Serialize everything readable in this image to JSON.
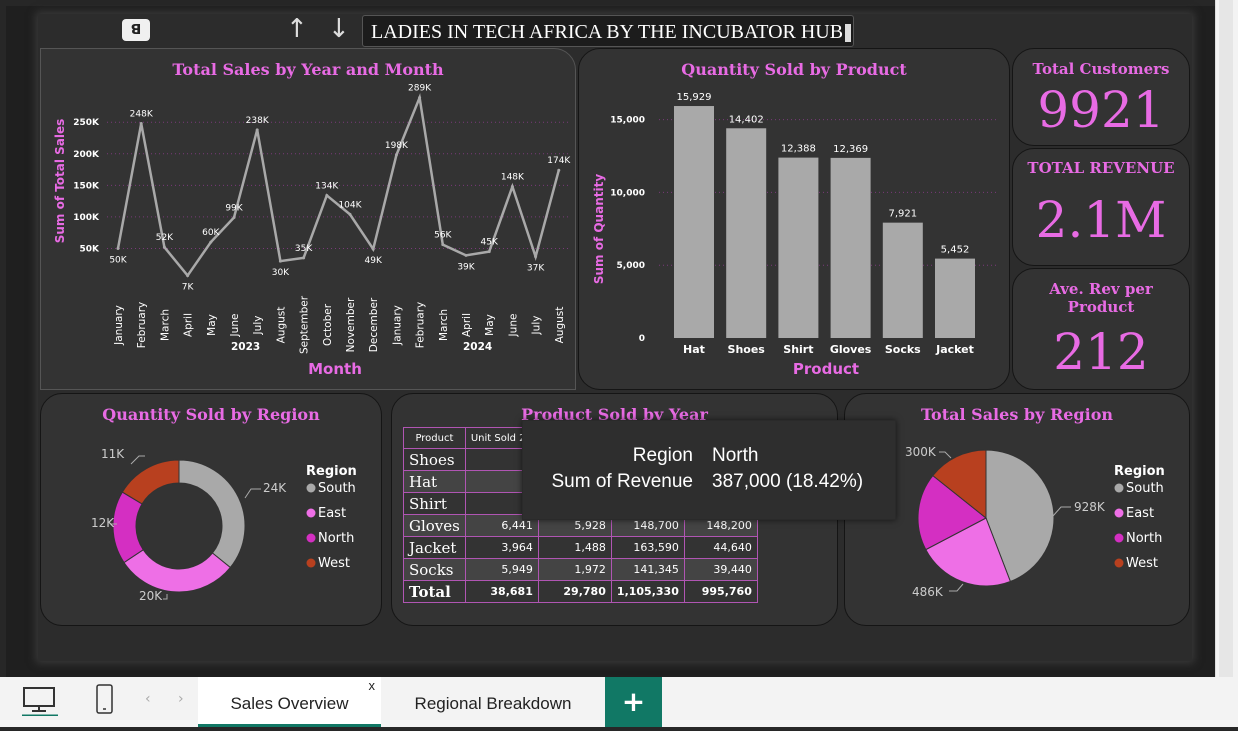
{
  "header": {
    "title": "LADIES IN TECH AFRICA BY THE INCUBATOR HUB",
    "logo_text": "ꓭ",
    "up_icon": "arrow-up-icon",
    "down_icon": "arrow-down-icon"
  },
  "kpis": [
    {
      "title": "Total Customers",
      "value": "9921"
    },
    {
      "title": "TOTAL REVENUE",
      "value": "2.1M"
    },
    {
      "title": "Ave. Rev per Product",
      "value": "212"
    }
  ],
  "colors": {
    "pink": "#e86be4",
    "grey": "#a9a9a9",
    "magenta": "#d42fc2",
    "light_pink": "#ee6fe6",
    "rust": "#b8401f"
  },
  "chart_data": [
    {
      "type": "line",
      "title": "Total Sales by Year and Month",
      "xlabel": "Month",
      "ylabel": "Sum of Total Sales",
      "years": [
        {
          "label": "2023",
          "span": 12
        },
        {
          "label": "2024",
          "span": 8
        }
      ],
      "categories": [
        "January",
        "February",
        "March",
        "April",
        "May",
        "June",
        "July",
        "August",
        "September",
        "October",
        "November",
        "December",
        "January",
        "February",
        "March",
        "April",
        "May",
        "June",
        "July",
        "August"
      ],
      "values": [
        50000,
        248000,
        52000,
        7000,
        60000,
        99000,
        238000,
        30000,
        35000,
        134000,
        104000,
        49000,
        198000,
        289000,
        56000,
        39000,
        45000,
        148000,
        37000,
        174000
      ],
      "labels": [
        "50K",
        "248K",
        "52K",
        "7K",
        "60K",
        "99K",
        "238K",
        "30K",
        "35K",
        "134K",
        "104K",
        "49K",
        "198K",
        "289K",
        "56K",
        "39K",
        "45K",
        "148K",
        "37K",
        "174K"
      ],
      "yticks": [
        50000,
        100000,
        150000,
        200000,
        250000
      ],
      "ytick_labels": [
        "50K",
        "100K",
        "150K",
        "200K",
        "250K"
      ],
      "ylim": [
        0,
        290000
      ]
    },
    {
      "type": "bar",
      "title": "Quantity Sold by Product",
      "xlabel": "Product",
      "ylabel": "Sum of Quantity",
      "categories": [
        "Hat",
        "Shoes",
        "Shirt",
        "Gloves",
        "Socks",
        "Jacket"
      ],
      "values": [
        15929,
        14402,
        12388,
        12369,
        7921,
        5452
      ],
      "labels": [
        "15,929",
        "14,402",
        "12,388",
        "12,369",
        "7,921",
        "5,452"
      ],
      "yticks": [
        0,
        5000,
        10000,
        15000
      ],
      "ytick_labels": [
        "0",
        "5,000",
        "10,000",
        "15,000"
      ],
      "ylim": [
        0,
        16000
      ]
    },
    {
      "type": "pie",
      "title": "Quantity Sold by Region",
      "legend_title": "Region",
      "categories": [
        "South",
        "East",
        "North",
        "West"
      ],
      "values": [
        24000,
        20000,
        12000,
        11000
      ],
      "labels": [
        "24K",
        "20K",
        "12K",
        "11K"
      ]
    },
    {
      "type": "pie",
      "title": "Total Sales by Region",
      "legend_title": "Region",
      "categories": [
        "South",
        "East",
        "North",
        "West"
      ],
      "values": [
        928000,
        486000,
        387000,
        300000
      ],
      "labels": [
        "928K",
        "486K",
        "",
        "300K"
      ]
    },
    {
      "type": "table",
      "title": "Product Sold by Year",
      "columns": [
        "Product",
        "Unit Sold 2"
      ],
      "rows": [
        {
          "name": "Shoes",
          "c1": "6",
          "c2": "",
          "c3": "",
          "c4": ""
        },
        {
          "name": "Hat",
          "c1": "6",
          "c2": "",
          "c3": "",
          "c4": ""
        },
        {
          "name": "Shirt",
          "c1": "8",
          "c2": "",
          "c3": "",
          "c4": ""
        },
        {
          "name": "Gloves",
          "c1": "6,441",
          "c2": "5,928",
          "c3": "148,700",
          "c4": "148,200"
        },
        {
          "name": "Jacket",
          "c1": "3,964",
          "c2": "1,488",
          "c3": "163,590",
          "c4": "44,640"
        },
        {
          "name": "Socks",
          "c1": "5,949",
          "c2": "1,972",
          "c3": "141,345",
          "c4": "39,440"
        }
      ],
      "total": {
        "name": "Total",
        "c1": "38,681",
        "c2": "29,780",
        "c3": "1,105,330",
        "c4": "995,760"
      }
    }
  ],
  "tooltip": {
    "region_label": "Region",
    "region_value": "North",
    "revenue_label": "Sum of Revenue",
    "revenue_value": "387,000 (18.42%)"
  },
  "tabs": {
    "active": "Sales Overview",
    "other": "Regional Breakdown",
    "close": "x",
    "add": "+"
  }
}
